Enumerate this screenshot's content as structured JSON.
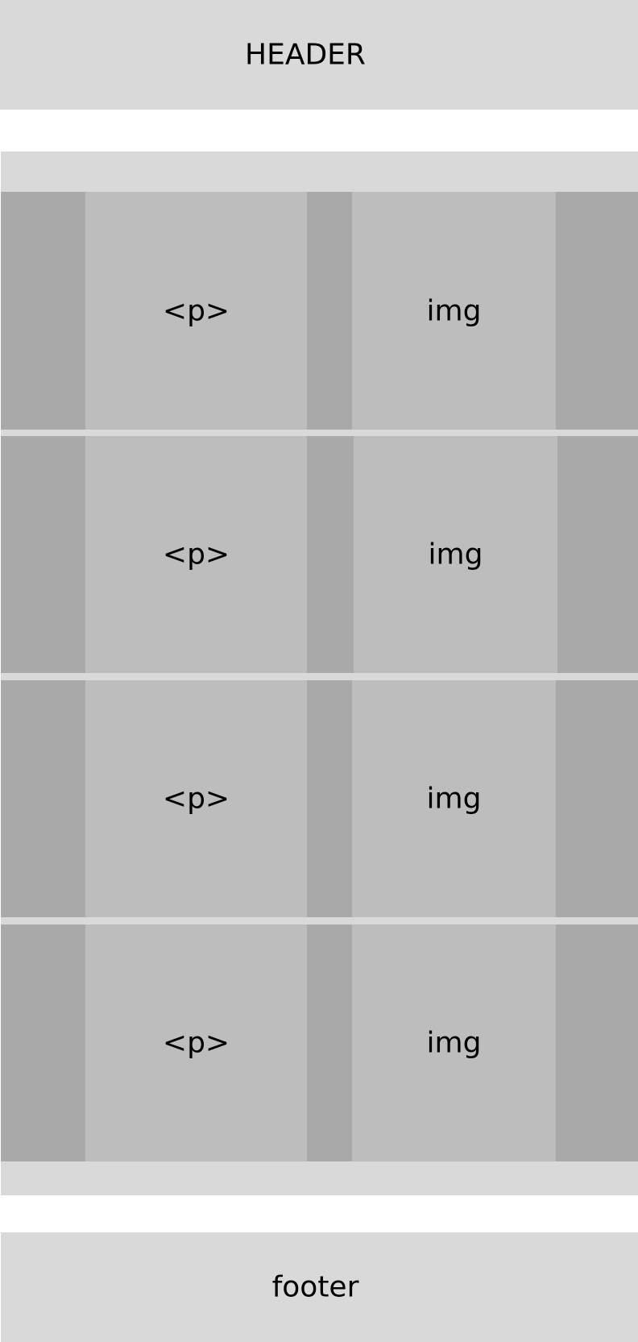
{
  "header": {
    "label": "HEADER"
  },
  "rows": [
    {
      "text_label": "<p>",
      "image_label": "img"
    },
    {
      "text_label": "<p>",
      "image_label": "img"
    },
    {
      "text_label": "<p>",
      "image_label": "img"
    },
    {
      "text_label": "<p>",
      "image_label": "img"
    }
  ],
  "footer": {
    "label": "footer"
  },
  "colors": {
    "section_fill": "#d9d9d9",
    "row_fill": "#a9a9a9",
    "cell_fill": "#bdbdbd",
    "text": "#000000"
  }
}
